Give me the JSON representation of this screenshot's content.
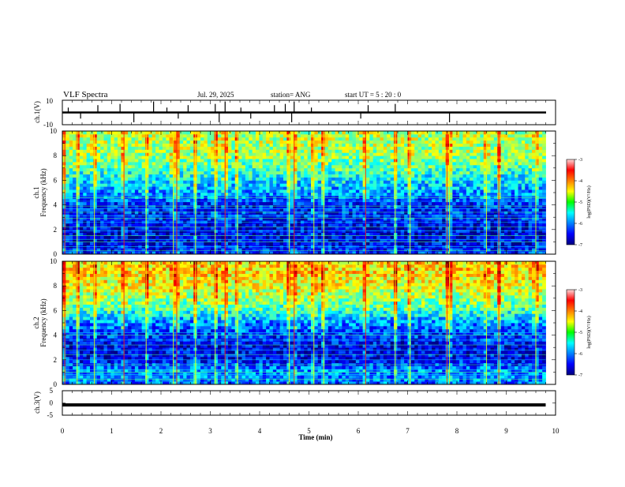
{
  "header": {
    "title": "VLF Spectra",
    "date": "Jul. 29, 2025",
    "station": "station= ANG",
    "start_ut": "start UT =  5 : 20 : 0"
  },
  "ch1_trace": {
    "ylabel": "ch.1(V)",
    "ymax_label": "10",
    "ymin_label": "-10",
    "ylim": [
      -10,
      10
    ]
  },
  "spec1": {
    "ylabel_line1": "ch.1",
    "ylabel_line2": "Frequency (kHz)",
    "yticks": [
      "0",
      "2",
      "4",
      "6",
      "8",
      "10"
    ]
  },
  "spec2": {
    "ylabel_line1": "ch.2",
    "ylabel_line2": "Frequency (kHz)",
    "yticks": [
      "0",
      "2",
      "4",
      "6",
      "8",
      "10"
    ]
  },
  "ch3_trace": {
    "ylabel": "ch.3(V)",
    "yticks": [
      "5",
      "0",
      "-5"
    ],
    "ylim": [
      -5,
      5
    ]
  },
  "colorbar": {
    "label": "log(PSD)(V²/Hz)",
    "ticks": [
      "-3",
      "-4",
      "-5",
      "-6",
      "-7"
    ]
  },
  "xaxis": {
    "label": "Time (min)",
    "ticks": [
      "0",
      "1",
      "2",
      "3",
      "4",
      "5",
      "6",
      "7",
      "8",
      "9",
      "10"
    ]
  },
  "chart_data": [
    {
      "type": "line",
      "name": "ch.1 waveform",
      "xlabel": "Time (min)",
      "ylabel": "ch.1(V)",
      "xlim": [
        0,
        10
      ],
      "ylim": [
        -10,
        10
      ],
      "baseline": 0,
      "data_end_min": 9.8,
      "spike_times_min": [
        0.12,
        0.37,
        0.72,
        1.17,
        1.45,
        1.85,
        2.12,
        2.35,
        2.55,
        3.1,
        3.18,
        3.3,
        3.62,
        3.82,
        4.3,
        4.52,
        4.65,
        4.7,
        5.05,
        6.05,
        6.2,
        6.75,
        7.85
      ]
    },
    {
      "type": "heatmap",
      "name": "ch.1 spectrogram",
      "xlabel": "Time (min)",
      "ylabel": "Frequency (kHz)",
      "xlim": [
        0,
        10
      ],
      "ylim": [
        0,
        10
      ],
      "zlim": [
        -7,
        -3
      ],
      "zlabel": "log(PSD)(V²/Hz)",
      "data_end_min": 9.8,
      "profile_khz": [
        0,
        1,
        2,
        3,
        4,
        5,
        6,
        7,
        8,
        9,
        10
      ],
      "profile_log_psd": [
        -6.3,
        -6.6,
        -6.6,
        -6.4,
        -6.4,
        -5.9,
        -5.6,
        -5.2,
        -4.9,
        -4.8,
        -4.8
      ],
      "hum_lines_khz": [
        0.3,
        0.6,
        1.0,
        1.2,
        1.5,
        1.9,
        2.2,
        2.6,
        2.9,
        3.1,
        3.4,
        3.7,
        3.9,
        4.3,
        4.6,
        4.8
      ],
      "burst_times_min": [
        0.05,
        0.3,
        0.65,
        1.25,
        1.7,
        2.25,
        2.32,
        2.7,
        3.1,
        3.3,
        3.55,
        4.6,
        4.7,
        5.1,
        5.3,
        6.15,
        6.75,
        7.05,
        7.8,
        7.85,
        8.6,
        8.85,
        9.6
      ]
    },
    {
      "type": "heatmap",
      "name": "ch.2 spectrogram",
      "xlabel": "Time (min)",
      "ylabel": "Frequency (kHz)",
      "xlim": [
        0,
        10
      ],
      "ylim": [
        0,
        10
      ],
      "zlim": [
        -7,
        -3
      ],
      "zlabel": "log(PSD)(V²/Hz)",
      "data_end_min": 9.8,
      "profile_khz": [
        0,
        1,
        2,
        3,
        4,
        5,
        6,
        7,
        8,
        9,
        10
      ],
      "profile_log_psd": [
        -6.1,
        -5.9,
        -6.5,
        -6.6,
        -6.3,
        -6.0,
        -5.3,
        -4.9,
        -4.6,
        -4.4,
        -4.4
      ],
      "hum_lines_khz": [
        0.4,
        0.8,
        1.0,
        1.2,
        1.6,
        2.0,
        2.4,
        2.8,
        3.2,
        3.6,
        4.0,
        4.2
      ],
      "burst_times_min": [
        0.05,
        0.3,
        0.65,
        1.25,
        1.7,
        2.25,
        2.32,
        2.7,
        3.1,
        3.3,
        3.55,
        4.6,
        4.7,
        5.1,
        5.3,
        6.15,
        6.75,
        7.05,
        7.8,
        7.85,
        8.6,
        8.85,
        9.6
      ]
    },
    {
      "type": "line",
      "name": "ch.3 waveform",
      "xlabel": "Time (min)",
      "ylabel": "ch.3(V)",
      "xlim": [
        0,
        10
      ],
      "ylim": [
        -5,
        5
      ],
      "constant_value": -0.8,
      "data_end_min": 9.8
    }
  ]
}
